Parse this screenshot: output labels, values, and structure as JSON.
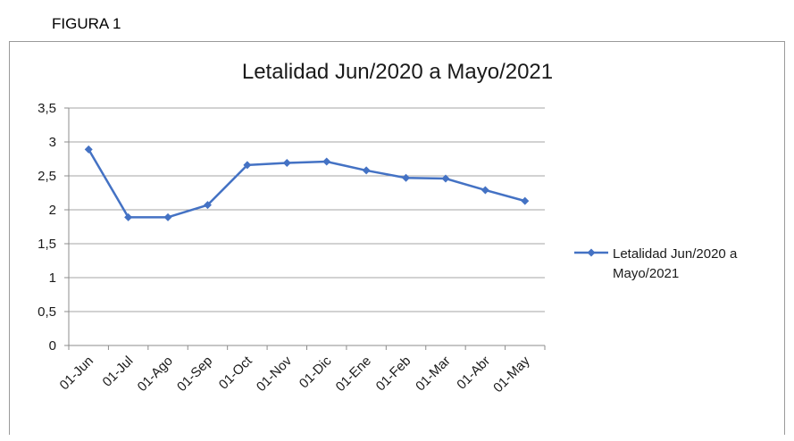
{
  "figure_label": "FIGURA 1",
  "chart_data": {
    "type": "line",
    "title": "Letalidad Jun/2020 a Mayo/2021",
    "xlabel": "",
    "ylabel": "",
    "categories": [
      "01-Jun",
      "01-Jul",
      "01-Ago",
      "01-Sep",
      "01-Oct",
      "01-Nov",
      "01-Dic",
      "01-Ene",
      "01-Feb",
      "01-Mar",
      "01-Abr",
      "01-May"
    ],
    "series": [
      {
        "name": "Letalidad Jun/2020 a Mayo/2021",
        "name_lines": [
          "Letalidad Jun/2020 a",
          "Mayo/2021"
        ],
        "values": [
          2.89,
          1.89,
          1.89,
          2.07,
          2.66,
          2.69,
          2.71,
          2.58,
          2.47,
          2.46,
          2.29,
          2.13
        ]
      }
    ],
    "ylim": [
      0,
      3.5
    ],
    "yticks": [
      "0",
      "0,5",
      "1",
      "1,5",
      "2",
      "2,5",
      "3",
      "3,5"
    ],
    "grid": true,
    "legend": "right",
    "colors": {
      "line": "#4472c4",
      "grid": "#a6a6a6",
      "axis": "#8c8c8c"
    }
  }
}
